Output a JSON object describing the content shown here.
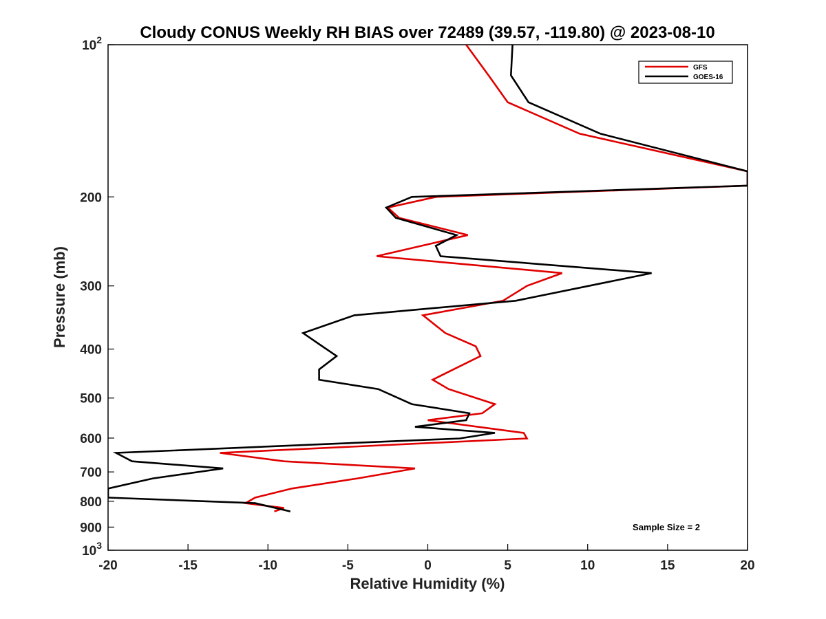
{
  "chart_data": {
    "type": "line",
    "title": "Cloudy CONUS Weekly RH BIAS over 72489 (39.57, -119.80) @ 2023-08-10",
    "xlabel": "Relative Humidity (%)",
    "ylabel": "Pressure (mb)",
    "xlim": [
      -20,
      20
    ],
    "ylim": [
      100,
      1000
    ],
    "y_scale": "log",
    "y_reversed": true,
    "x_ticks": [
      "-20",
      "-15",
      "-10",
      "-5",
      "0",
      "5",
      "10",
      "15",
      "20"
    ],
    "y_ticks": [
      {
        "value": 100,
        "base": "10",
        "exp": "2"
      },
      {
        "value": 200,
        "label": "200"
      },
      {
        "value": 300,
        "label": "300"
      },
      {
        "value": 400,
        "label": "400"
      },
      {
        "value": 500,
        "label": "500"
      },
      {
        "value": 600,
        "label": "600"
      },
      {
        "value": 700,
        "label": "700"
      },
      {
        "value": 800,
        "label": "800"
      },
      {
        "value": 900,
        "label": "900"
      },
      {
        "value": 1000,
        "base": "10",
        "exp": "3"
      }
    ],
    "grid": false,
    "legend_position": "top-right",
    "annotation": "Sample Size = 2",
    "series": [
      {
        "name": "GFS",
        "color": "#e00000",
        "points": [
          [
            2.4,
            100
          ],
          [
            3.8,
            115
          ],
          [
            5.0,
            130
          ],
          [
            9.5,
            150
          ],
          [
            20,
            178
          ],
          [
            20,
            190
          ],
          [
            0.5,
            200
          ],
          [
            -2.5,
            210
          ],
          [
            -1.8,
            220
          ],
          [
            2.5,
            238
          ],
          [
            -3.2,
            262
          ],
          [
            8.4,
            283
          ],
          [
            6.2,
            300
          ],
          [
            4.7,
            321
          ],
          [
            -0.3,
            343
          ],
          [
            1.1,
            372
          ],
          [
            3.0,
            395
          ],
          [
            3.3,
            413
          ],
          [
            0.3,
            460
          ],
          [
            1.3,
            480
          ],
          [
            4.2,
            514
          ],
          [
            3.4,
            536
          ],
          [
            0.0,
            553
          ],
          [
            6.0,
            586
          ],
          [
            6.2,
            601
          ],
          [
            -13.0,
            642
          ],
          [
            -9.0,
            667
          ],
          [
            -0.8,
            689
          ],
          [
            -4.4,
            721
          ],
          [
            -8.5,
            755
          ],
          [
            -10.8,
            787
          ],
          [
            -11.4,
            807
          ],
          [
            -9.0,
            825
          ],
          [
            -9.6,
            838
          ]
        ]
      },
      {
        "name": "GOES-16",
        "color": "#000000",
        "points": [
          [
            5.3,
            100
          ],
          [
            5.2,
            115
          ],
          [
            6.3,
            130
          ],
          [
            10.8,
            150
          ],
          [
            20,
            178
          ],
          [
            20,
            190
          ],
          [
            -1.0,
            200
          ],
          [
            -2.6,
            210
          ],
          [
            -2.0,
            220
          ],
          [
            1.8,
            238
          ],
          [
            0.5,
            250
          ],
          [
            0.8,
            262
          ],
          [
            14.0,
            283
          ],
          [
            5.5,
            321
          ],
          [
            -4.6,
            343
          ],
          [
            -7.8,
            372
          ],
          [
            -6.6,
            395
          ],
          [
            -5.7,
            413
          ],
          [
            -6.8,
            439
          ],
          [
            -6.8,
            460
          ],
          [
            -3.1,
            480
          ],
          [
            -1.0,
            514
          ],
          [
            2.6,
            536
          ],
          [
            2.4,
            553
          ],
          [
            -0.8,
            570
          ],
          [
            4.2,
            586
          ],
          [
            2.0,
            601
          ],
          [
            -19.5,
            642
          ],
          [
            -18.5,
            667
          ],
          [
            -12.8,
            689
          ],
          [
            -17.2,
            721
          ],
          [
            -20,
            755
          ],
          [
            -20,
            787
          ],
          [
            -10.8,
            807
          ],
          [
            -8.6,
            838
          ]
        ]
      }
    ]
  }
}
